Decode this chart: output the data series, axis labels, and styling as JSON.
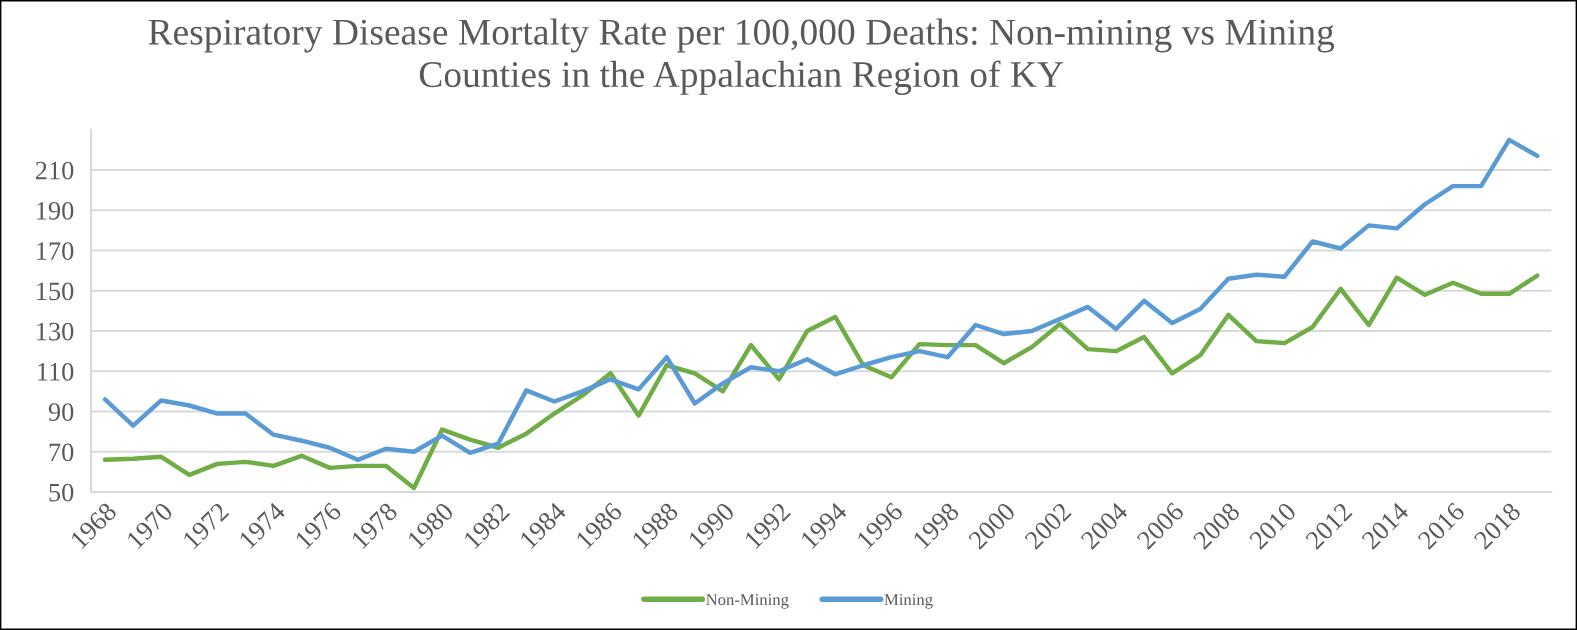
{
  "chart_data": {
    "type": "line",
    "title": "Respiratory Disease Mortalty Rate per 100,000 Deaths: Non-mining vs Mining\nCounties in the Appalachian Region of KY",
    "categories": [
      "1968",
      null,
      "1970",
      null,
      "1972",
      null,
      "1974",
      null,
      "1976",
      null,
      "1978",
      null,
      "1980",
      null,
      "1982",
      null,
      "1984",
      null,
      "1986",
      null,
      "1988",
      null,
      "1990",
      null,
      "1992",
      null,
      "1994",
      null,
      "1996",
      null,
      "1998",
      null,
      "2000",
      null,
      "2002",
      null,
      "2004",
      null,
      "2006",
      null,
      "2008",
      null,
      "2010",
      null,
      "2012",
      null,
      "2014",
      null,
      "2016",
      null,
      "2018",
      null
    ],
    "series": [
      {
        "name": "Non-Mining",
        "color": "#70ad47",
        "values": [
          66,
          66.5,
          67.5,
          58.5,
          64,
          65,
          63,
          68,
          62,
          63,
          63,
          52,
          81,
          76,
          72,
          79,
          89,
          98,
          109,
          88,
          113,
          109,
          100,
          123,
          106,
          130,
          137,
          113,
          107,
          123.5,
          123,
          123,
          114,
          122,
          133.5,
          121,
          120,
          127,
          109,
          118,
          138,
          125,
          124,
          132,
          151,
          133,
          156.5,
          148,
          154,
          148.5,
          148.5,
          157.5
        ]
      },
      {
        "name": "Mining",
        "color": "#5b9bd5",
        "values": [
          96,
          83,
          95.5,
          93,
          89,
          89,
          78.5,
          75.5,
          72,
          66,
          71.5,
          70,
          78,
          69.5,
          74,
          100.5,
          95,
          100,
          106,
          101,
          117,
          94,
          104,
          112,
          110,
          116,
          108.5,
          113,
          117,
          120,
          117,
          133,
          128.5,
          130,
          136,
          142,
          131,
          145,
          134,
          141,
          156,
          158,
          157,
          174.5,
          171,
          182.5,
          181,
          193,
          202,
          202,
          225,
          217
        ]
      }
    ],
    "ylim": [
      50,
      230
    ],
    "yticks": [
      50,
      70,
      90,
      110,
      130,
      150,
      170,
      190,
      210
    ],
    "grid": "y",
    "legend": "bottom",
    "marker": "none",
    "line_style": "solid"
  }
}
